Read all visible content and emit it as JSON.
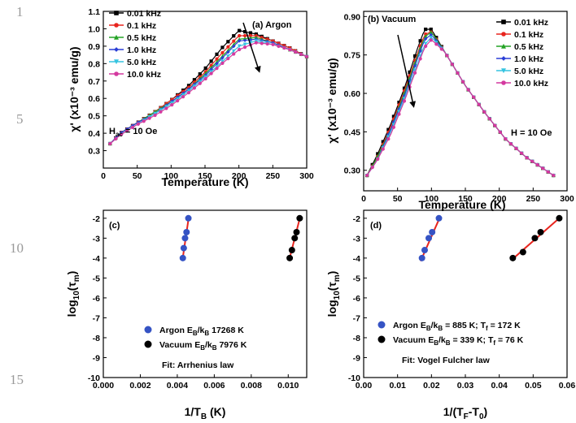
{
  "line_numbers": [
    "1",
    "5",
    "10",
    "15"
  ],
  "chart_data": [
    {
      "panel": "(a) Argon",
      "type": "line",
      "xlabel": "Temperature (K)",
      "ylabel": "χ' (x10⁻³ emu/g)",
      "xlim": [
        0,
        300
      ],
      "ylim": [
        0.2,
        1.1
      ],
      "xticks": [
        0,
        50,
        100,
        150,
        200,
        250,
        300
      ],
      "yticks": [
        0.3,
        0.4,
        0.5,
        0.6,
        0.7,
        0.8,
        0.9,
        1.0,
        1.1
      ],
      "ytick_labels": [
        "0.3",
        "0.4",
        "0.5",
        "0.6",
        "0.7",
        "0.8",
        "0.9",
        "1.0",
        "1.1"
      ],
      "legend_position": "top-left",
      "field_label": "H",
      "field_label_sub": "ac",
      "field_label_value": " = 10 Oe",
      "x": [
        10,
        25,
        50,
        75,
        100,
        125,
        150,
        175,
        200,
        225,
        250,
        275,
        300
      ],
      "series": [
        {
          "name": "0.01 kHz",
          "color": "#000000",
          "marker": "square",
          "values": [
            0.34,
            0.4,
            0.46,
            0.52,
            0.59,
            0.67,
            0.77,
            0.89,
            0.99,
            0.97,
            0.93,
            0.89,
            0.84
          ]
        },
        {
          "name": "0.1 kHz",
          "color": "#e8251e",
          "marker": "circle",
          "values": [
            0.34,
            0.4,
            0.46,
            0.52,
            0.59,
            0.66,
            0.75,
            0.86,
            0.96,
            0.96,
            0.93,
            0.89,
            0.84
          ]
        },
        {
          "name": "0.5 kHz",
          "color": "#24a325",
          "marker": "triangle",
          "values": [
            0.34,
            0.4,
            0.46,
            0.52,
            0.58,
            0.65,
            0.74,
            0.84,
            0.94,
            0.95,
            0.92,
            0.88,
            0.84
          ]
        },
        {
          "name": "1.0 kHz",
          "color": "#2b3fd6",
          "marker": "diamond",
          "values": [
            0.34,
            0.4,
            0.46,
            0.51,
            0.58,
            0.65,
            0.73,
            0.83,
            0.93,
            0.94,
            0.92,
            0.88,
            0.84
          ]
        },
        {
          "name": "5.0 kHz",
          "color": "#35c4e0",
          "marker": "triangle-down",
          "values": [
            0.34,
            0.39,
            0.45,
            0.51,
            0.57,
            0.64,
            0.72,
            0.81,
            0.9,
            0.93,
            0.91,
            0.88,
            0.84
          ]
        },
        {
          "name": "10.0 kHz",
          "color": "#d4399f",
          "marker": "circle",
          "values": [
            0.34,
            0.39,
            0.45,
            0.5,
            0.56,
            0.63,
            0.71,
            0.8,
            0.88,
            0.92,
            0.91,
            0.88,
            0.84
          ]
        }
      ]
    },
    {
      "panel": "(b) Vacuum",
      "type": "line",
      "xlabel": "Temperature (K)",
      "ylabel": "χ' (x10⁻³ emu/g)",
      "xlim": [
        0,
        300
      ],
      "ylim": [
        0.22,
        0.92
      ],
      "xticks": [
        0,
        50,
        100,
        150,
        200,
        250,
        300
      ],
      "yticks": [
        0.3,
        0.45,
        0.6,
        0.75,
        0.9
      ],
      "ytick_labels": [
        "0.30",
        "0.45",
        "0.60",
        "0.75",
        "0.90"
      ],
      "legend_position": "top-right",
      "field_label": "H = 10 Oe",
      "x": [
        5,
        20,
        40,
        60,
        80,
        90,
        100,
        120,
        150,
        180,
        210,
        240,
        280
      ],
      "series": [
        {
          "name": "0.01 kHz",
          "color": "#000000",
          "marker": "square",
          "values": [
            0.28,
            0.36,
            0.48,
            0.62,
            0.78,
            0.85,
            0.85,
            0.76,
            0.63,
            0.52,
            0.42,
            0.35,
            0.28
          ]
        },
        {
          "name": "0.1 kHz",
          "color": "#e8251e",
          "marker": "circle",
          "values": [
            0.28,
            0.35,
            0.47,
            0.61,
            0.76,
            0.83,
            0.84,
            0.76,
            0.63,
            0.52,
            0.42,
            0.35,
            0.28
          ]
        },
        {
          "name": "0.5 kHz",
          "color": "#24a325",
          "marker": "triangle",
          "values": [
            0.28,
            0.35,
            0.46,
            0.6,
            0.75,
            0.82,
            0.84,
            0.76,
            0.63,
            0.52,
            0.42,
            0.35,
            0.28
          ]
        },
        {
          "name": "1.0 kHz",
          "color": "#2b3fd6",
          "marker": "diamond",
          "values": [
            0.28,
            0.34,
            0.46,
            0.59,
            0.74,
            0.81,
            0.83,
            0.76,
            0.63,
            0.52,
            0.42,
            0.35,
            0.28
          ]
        },
        {
          "name": "5.0 kHz",
          "color": "#35c4e0",
          "marker": "triangle-down",
          "values": [
            0.28,
            0.34,
            0.45,
            0.58,
            0.72,
            0.79,
            0.82,
            0.76,
            0.63,
            0.52,
            0.42,
            0.35,
            0.28
          ]
        },
        {
          "name": "10.0 kHz",
          "color": "#d4399f",
          "marker": "circle",
          "values": [
            0.28,
            0.34,
            0.44,
            0.57,
            0.71,
            0.78,
            0.81,
            0.76,
            0.63,
            0.52,
            0.42,
            0.35,
            0.28
          ]
        }
      ]
    },
    {
      "panel": "(c)",
      "type": "scatter",
      "xlabel": "1/T",
      "xlabel_sub": "B",
      "xlabel_tail": " (K)",
      "ylabel": "log",
      "ylabel_sub": "10",
      "ylabel_tail": "(τ",
      "ylabel_sub2": "m",
      "ylabel_end": ")",
      "xlim": [
        0,
        0.011
      ],
      "ylim": [
        -10,
        -1.6
      ],
      "xticks": [
        0.0,
        0.002,
        0.004,
        0.006,
        0.008,
        0.01
      ],
      "xtick_labels": [
        "0.000",
        "0.002",
        "0.004",
        "0.006",
        "0.008",
        "0.010"
      ],
      "yticks": [
        -10,
        -9,
        -8,
        -7,
        -6,
        -5,
        -4,
        -3,
        -2
      ],
      "ytick_labels": [
        "-10",
        "-9",
        "-8",
        "-7",
        "-6",
        "-5",
        "-4",
        "-3",
        "-2"
      ],
      "series": [
        {
          "name": "Argon",
          "color": "#3553c4",
          "x": [
            0.0043,
            0.00435,
            0.00442,
            0.0045,
            0.0046
          ],
          "y": [
            -4,
            -3.5,
            -3,
            -2.7,
            -2
          ],
          "fit": [
            [
              0.00428,
              -4.1
            ],
            [
              0.00462,
              -1.95
            ]
          ]
        },
        {
          "name": "Vacuum",
          "color": "#000000",
          "x": [
            0.01008,
            0.0102,
            0.01035,
            0.01045,
            0.01062
          ],
          "y": [
            -4,
            -3.6,
            -3,
            -2.7,
            -2
          ],
          "fit": [
            [
              0.01005,
              -4.1
            ],
            [
              0.01064,
              -1.95
            ]
          ]
        }
      ],
      "legend": [
        {
          "label": "Argon",
          "text": "E",
          "sub": "B",
          "tail": "/k",
          "sub2": "B",
          "value": " 17268 K"
        },
        {
          "label": "Vacuum",
          "text": "E",
          "sub": "B",
          "tail": "/k",
          "sub2": "B",
          "value": " 7976 K"
        }
      ],
      "fit_label": "Fit: Arrhenius law"
    },
    {
      "panel": "(d)",
      "type": "scatter",
      "xlabel": "1/(T",
      "xlabel_sub": "F",
      "xlabel_tail": "-T",
      "xlabel_sub2": "0",
      "xlabel_end": ")",
      "ylabel": "log",
      "ylabel_sub": "10",
      "ylabel_tail": "(τ",
      "ylabel_sub2": "m",
      "ylabel_end": ")",
      "xlim": [
        0,
        0.06
      ],
      "ylim": [
        -10,
        -1.6
      ],
      "xticks": [
        0.0,
        0.01,
        0.02,
        0.03,
        0.04,
        0.05,
        0.06
      ],
      "xtick_labels": [
        "0.00",
        "0.01",
        "0.02",
        "0.03",
        "0.04",
        "0.05",
        "0.06"
      ],
      "yticks": [
        -10,
        -9,
        -8,
        -7,
        -6,
        -5,
        -4,
        -3,
        -2
      ],
      "ytick_labels": [
        "-10",
        "-9",
        "-8",
        "-7",
        "-6",
        "-5",
        "-4",
        "-3",
        "-2"
      ],
      "series": [
        {
          "name": "Argon",
          "color": "#3553c4",
          "x": [
            0.0172,
            0.018,
            0.0192,
            0.0202,
            0.0222
          ],
          "y": [
            -4,
            -3.6,
            -3,
            -2.7,
            -2
          ],
          "fit": [
            [
              0.0168,
              -4.15
            ],
            [
              0.0225,
              -1.95
            ]
          ]
        },
        {
          "name": "Vacuum",
          "color": "#000000",
          "x": [
            0.044,
            0.047,
            0.0505,
            0.0522,
            0.0577
          ],
          "y": [
            -4,
            -3.7,
            -3,
            -2.7,
            -2
          ],
          "fit": [
            [
              0.0436,
              -4.1
            ],
            [
              0.058,
              -1.95
            ]
          ]
        }
      ],
      "legend": [
        {
          "label": "Argon",
          "text": "E",
          "sub": "B",
          "tail": "/k",
          "sub2": "B",
          "value": " = 885 K; T",
          "sub3": "f",
          "value2": " = 172 K"
        },
        {
          "label": "Vacuum",
          "text": "E",
          "sub": "B",
          "tail": "/k",
          "sub2": "B",
          "value": " = 339 K; T",
          "sub3": "f",
          "value2": " = 76 K"
        }
      ],
      "fit_label": "Fit: Vogel Fulcher law"
    }
  ]
}
